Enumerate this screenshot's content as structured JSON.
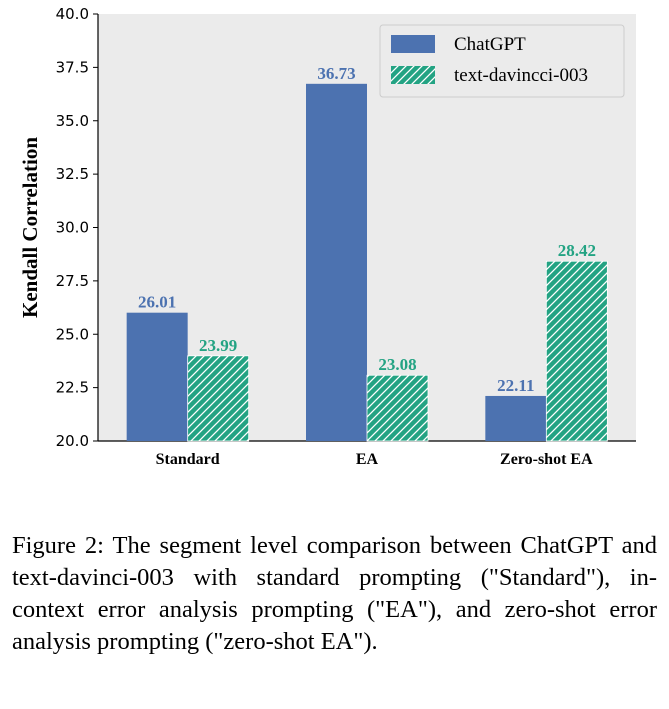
{
  "chart_data": {
    "type": "bar",
    "title": "",
    "xlabel": "",
    "ylabel": "Kendall Correlation",
    "ylim": [
      20.0,
      40.0
    ],
    "yticks": [
      "20.0",
      "22.5",
      "25.0",
      "27.5",
      "30.0",
      "32.5",
      "35.0",
      "37.5",
      "40.0"
    ],
    "categories": [
      "Standard",
      "EA",
      "Zero-shot EA"
    ],
    "series": [
      {
        "name": "ChatGPT",
        "values": [
          26.01,
          36.73,
          22.11
        ],
        "color": "#4c72b0",
        "hatch": false
      },
      {
        "name": "text-davincci-003",
        "values": [
          23.99,
          23.08,
          28.42
        ],
        "color": "#23a383",
        "hatch": true
      }
    ],
    "bar_labels": [
      [
        "26.01",
        "36.73",
        "22.11"
      ],
      [
        "23.99",
        "23.08",
        "28.42"
      ]
    ],
    "label_colors": [
      "#4c72b0",
      "#23a383"
    ],
    "background": "#ebebeb",
    "grid": false,
    "legend_position": "top-right"
  },
  "caption": "Figure 2: The segment level comparison between ChatGPT and text-davinci-003 with standard prompting (\"Standard\"), in-context error analysis prompting (\"EA\"), and zero-shot error analysis prompting (\"zero-shot EA\")."
}
